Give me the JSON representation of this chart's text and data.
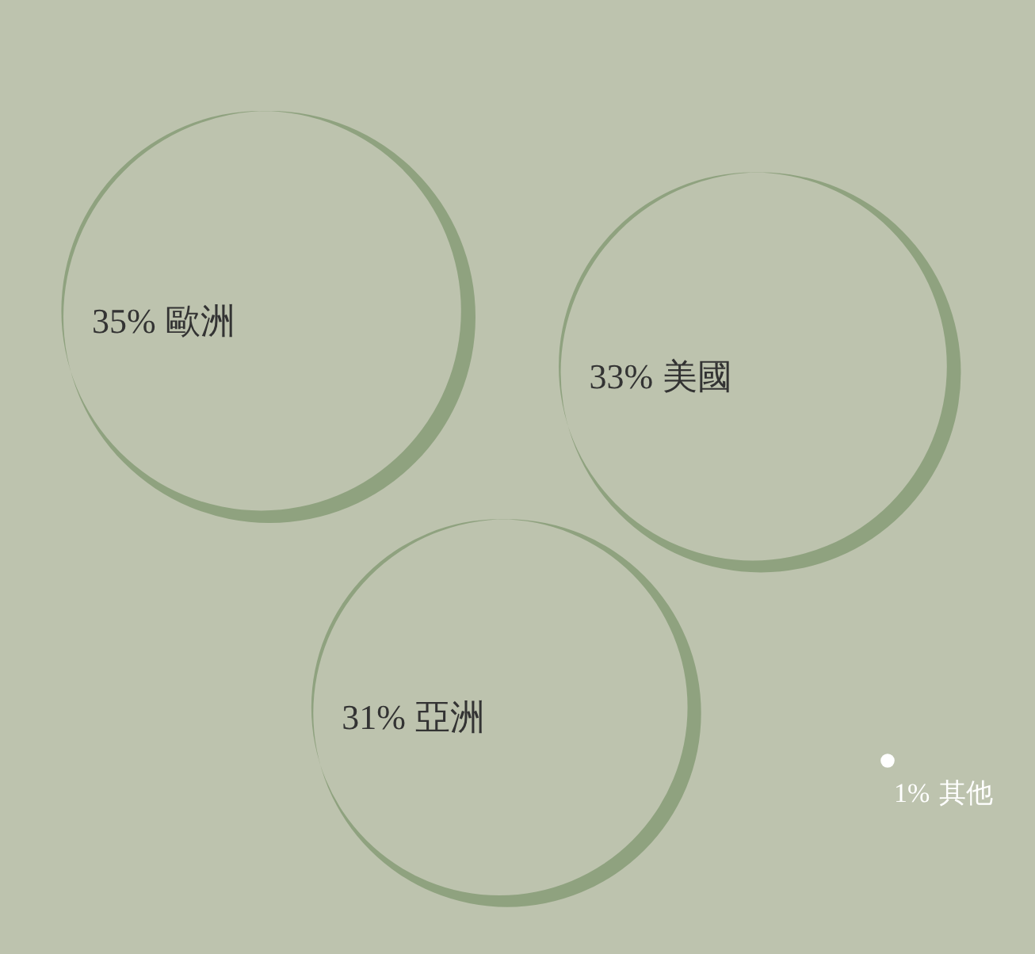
{
  "chart_data": {
    "type": "other",
    "categories": [
      "歐洲",
      "美國",
      "亞洲",
      "其他"
    ],
    "values": [
      35,
      33,
      31,
      1
    ],
    "value_labels": [
      "35%",
      "33%",
      "31%",
      "1%"
    ],
    "colors": [
      "#8fa27f",
      "#8fa27f",
      "#8fa27f",
      "#ffffff"
    ]
  }
}
